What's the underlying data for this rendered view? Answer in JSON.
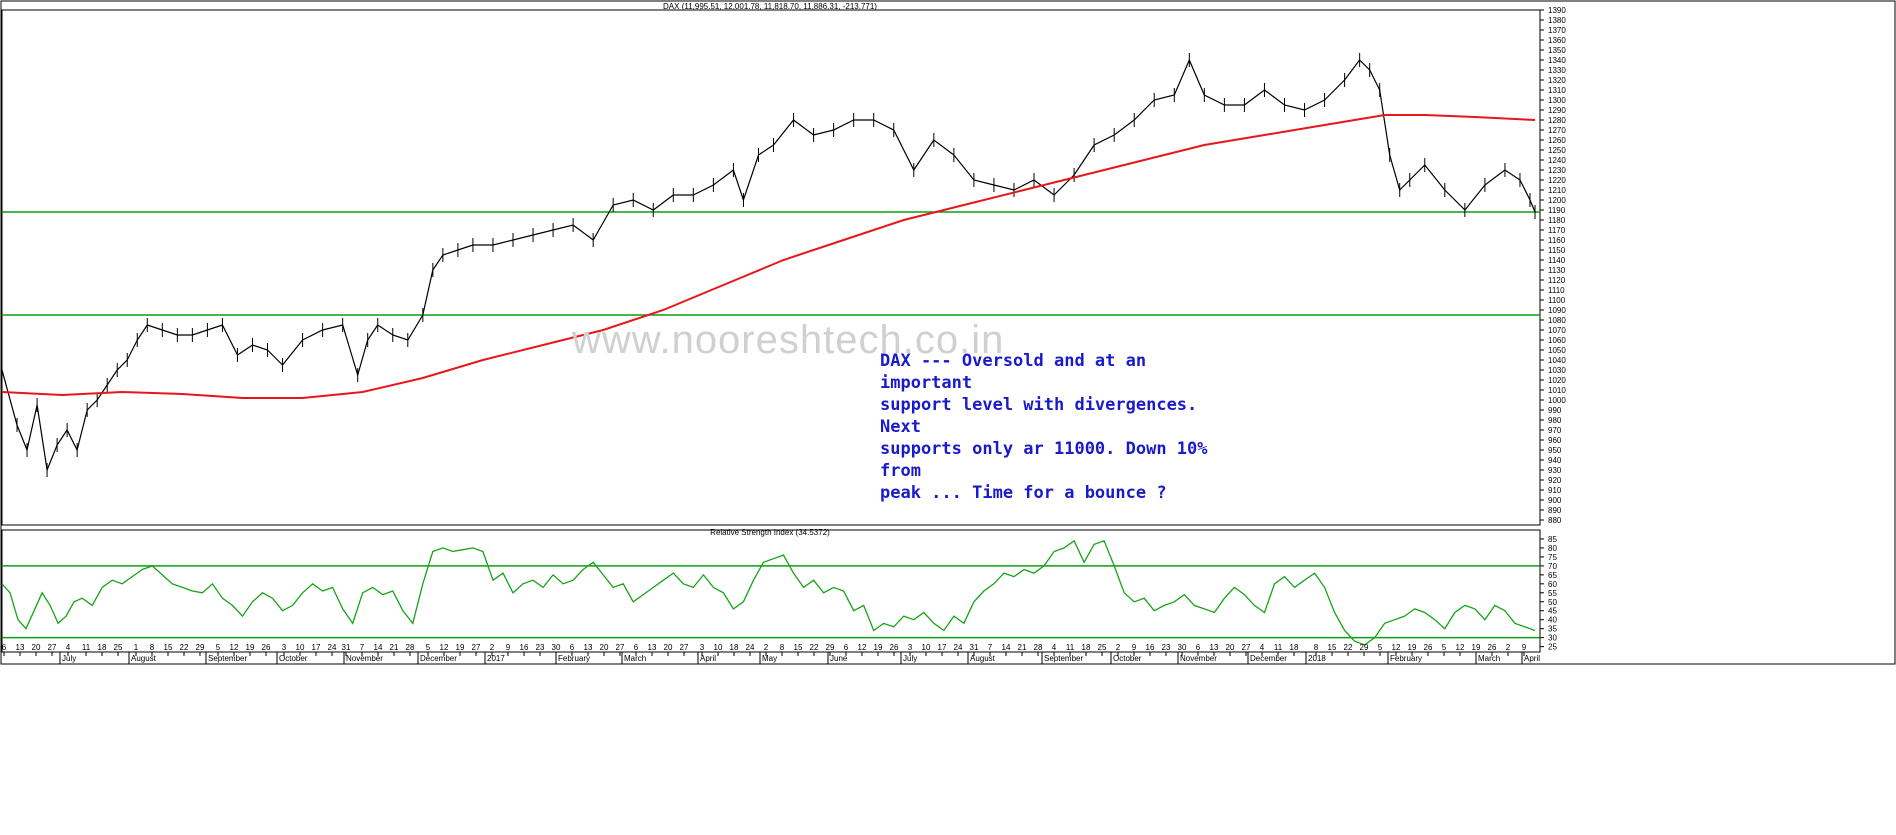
{
  "header": {
    "title": "DAX (11,995.51, 12,001.78, 11,818.70, 11,886.31, -213.771)"
  },
  "watermark": "www.nooreshtech.co.in",
  "annotation": [
    "DAX --- Oversold and at an important",
    "support level with divergences. Next",
    "supports only ar 11000. Down 10% from",
    "peak ... Time for a bounce ?"
  ],
  "colors": {
    "price": "#000000",
    "ma": "#e8161b",
    "support": "#0b9e10",
    "rsi": "#17a317",
    "annotation": "#1a1acd"
  },
  "chart_data": [
    {
      "type": "line",
      "title": "DAX (11,995.51, 12,001.78, 11,818.70, 11,886.31, -213.771)",
      "ylim": [
        8750,
        13900
      ],
      "y_ticks": [
        8800,
        8900,
        9000,
        9100,
        9200,
        9300,
        9400,
        9500,
        9600,
        9700,
        9800,
        9900,
        10000,
        10100,
        10200,
        10300,
        10400,
        10500,
        10600,
        10700,
        10800,
        10900,
        11000,
        11100,
        11200,
        11300,
        11400,
        11500,
        11600,
        11700,
        11800,
        11900,
        12000,
        12100,
        12200,
        12300,
        12400,
        12500,
        12600,
        12700,
        12800,
        12900,
        13000,
        13100,
        13200,
        13300,
        13400,
        13500,
        13600,
        13700,
        13800,
        13900
      ],
      "y_tick_labels": [
        "880",
        "890",
        "900",
        "910",
        "920",
        "930",
        "940",
        "950",
        "960",
        "970",
        "980",
        "990",
        "1000",
        "1010",
        "1020",
        "1030",
        "1040",
        "1050",
        "1060",
        "1070",
        "1080",
        "1090",
        "1100",
        "1110",
        "1120",
        "1130",
        "1140",
        "1150",
        "1160",
        "1170",
        "1180",
        "1190",
        "1200",
        "1210",
        "1220",
        "1230",
        "1240",
        "1250",
        "1260",
        "1270",
        "1280",
        "1290",
        "1300",
        "1310",
        "1320",
        "1330",
        "1340",
        "1350",
        "1360",
        "1370",
        "1380",
        "1390"
      ],
      "support_levels": [
        11880,
        10850
      ],
      "x_range": [
        0,
        1535
      ],
      "series": [
        {
          "name": "",
          "kind": "price",
          "x": [
            0,
            15,
            25,
            35,
            45,
            55,
            65,
            75,
            85,
            95,
            105,
            115,
            125,
            135,
            145,
            160,
            175,
            190,
            205,
            220,
            235,
            250,
            265,
            280,
            300,
            320,
            340,
            355,
            365,
            375,
            390,
            405,
            420,
            430,
            440,
            455,
            470,
            490,
            510,
            530,
            550,
            570,
            590,
            610,
            630,
            650,
            670,
            690,
            710,
            730,
            740,
            755,
            770,
            790,
            810,
            830,
            850,
            870,
            890,
            910,
            930,
            950,
            970,
            990,
            1010,
            1030,
            1050,
            1070,
            1090,
            1110,
            1130,
            1150,
            1170,
            1185,
            1200,
            1220,
            1240,
            1260,
            1280,
            1300,
            1320,
            1340,
            1355,
            1365,
            1375,
            1385,
            1395,
            1405,
            1420,
            1440,
            1460,
            1480,
            1500,
            1515,
            1525,
            1530
          ],
          "y": [
            10300,
            9750,
            9500,
            9950,
            9300,
            9550,
            9700,
            9500,
            9900,
            10000,
            10150,
            10300,
            10400,
            10600,
            10750,
            10700,
            10650,
            10650,
            10700,
            10750,
            10450,
            10550,
            10500,
            10350,
            10600,
            10700,
            10750,
            10250,
            10600,
            10750,
            10650,
            10600,
            10850,
            11300,
            11450,
            11500,
            11550,
            11550,
            11600,
            11650,
            11700,
            11750,
            11600,
            11950,
            12000,
            11900,
            12050,
            12050,
            12150,
            12300,
            12000,
            12450,
            12550,
            12800,
            12650,
            12700,
            12800,
            12800,
            12700,
            12300,
            12600,
            12450,
            12200,
            12150,
            12100,
            12200,
            12050,
            12250,
            12550,
            12650,
            12800,
            13000,
            13050,
            13400,
            13050,
            12950,
            12950,
            13100,
            12950,
            12900,
            13000,
            13200,
            13400,
            13300,
            13100,
            12450,
            12100,
            12200,
            12350,
            12100,
            11900,
            12150,
            12300,
            12200,
            12000,
            11880
          ]
        },
        {
          "name": "",
          "kind": "moving_average",
          "x": [
            0,
            60,
            120,
            180,
            240,
            300,
            360,
            420,
            480,
            540,
            600,
            660,
            720,
            780,
            840,
            900,
            960,
            1020,
            1080,
            1140,
            1200,
            1260,
            1320,
            1380,
            1420,
            1470,
            1530
          ],
          "y": [
            10080,
            10050,
            10080,
            10060,
            10020,
            10020,
            10080,
            10220,
            10400,
            10550,
            10700,
            10900,
            11150,
            11400,
            11600,
            11800,
            11950,
            12100,
            12250,
            12400,
            12550,
            12650,
            12750,
            12850,
            12850,
            12830,
            12800
          ]
        }
      ]
    },
    {
      "type": "line",
      "title": "Relative Strength Index (34.5372)",
      "ylim": [
        22,
        90
      ],
      "y_ticks": [
        25,
        30,
        35,
        40,
        45,
        50,
        55,
        60,
        65,
        70,
        75,
        80,
        85
      ],
      "y_tick_labels": [
        "25",
        "30",
        "35",
        "40",
        "45",
        "50",
        "55",
        "60",
        "65",
        "70",
        "75",
        "80",
        "85"
      ],
      "levels": [
        70,
        30
      ],
      "x_range": [
        0,
        1535
      ],
      "series": [
        {
          "name": "",
          "kind": "rsi",
          "x": [
            0,
            8,
            16,
            24,
            32,
            40,
            48,
            56,
            64,
            72,
            80,
            90,
            100,
            110,
            120,
            130,
            140,
            150,
            160,
            170,
            180,
            190,
            200,
            210,
            220,
            230,
            240,
            250,
            260,
            270,
            280,
            290,
            300,
            310,
            320,
            330,
            340,
            350,
            360,
            370,
            380,
            390,
            400,
            410,
            420,
            430,
            440,
            450,
            460,
            470,
            480,
            490,
            500,
            510,
            520,
            530,
            540,
            550,
            560,
            570,
            580,
            590,
            600,
            610,
            620,
            630,
            640,
            650,
            660,
            670,
            680,
            690,
            700,
            710,
            720,
            730,
            740,
            750,
            760,
            770,
            780,
            790,
            800,
            810,
            820,
            830,
            840,
            850,
            860,
            870,
            880,
            890,
            900,
            910,
            920,
            930,
            940,
            950,
            960,
            970,
            980,
            990,
            1000,
            1010,
            1020,
            1030,
            1040,
            1050,
            1060,
            1070,
            1080,
            1090,
            1100,
            1110,
            1120,
            1130,
            1140,
            1150,
            1160,
            1170,
            1180,
            1190,
            1200,
            1210,
            1220,
            1230,
            1240,
            1250,
            1260,
            1270,
            1280,
            1290,
            1300,
            1310,
            1320,
            1330,
            1340,
            1350,
            1360,
            1370,
            1380,
            1390,
            1400,
            1410,
            1420,
            1430,
            1440,
            1450,
            1460,
            1470,
            1480,
            1490,
            1500,
            1510,
            1520,
            1530
          ],
          "y": [
            60,
            55,
            40,
            35,
            45,
            55,
            48,
            38,
            42,
            50,
            52,
            48,
            58,
            62,
            60,
            64,
            68,
            70,
            65,
            60,
            58,
            56,
            55,
            60,
            52,
            48,
            42,
            50,
            55,
            52,
            45,
            48,
            55,
            60,
            56,
            58,
            46,
            38,
            55,
            58,
            54,
            56,
            45,
            38,
            60,
            78,
            80,
            78,
            79,
            80,
            78,
            62,
            66,
            55,
            60,
            62,
            58,
            65,
            60,
            62,
            68,
            72,
            65,
            58,
            60,
            50,
            54,
            58,
            62,
            66,
            60,
            58,
            65,
            58,
            55,
            46,
            50,
            62,
            72,
            74,
            76,
            66,
            58,
            62,
            55,
            58,
            56,
            45,
            48,
            34,
            38,
            36,
            42,
            40,
            44,
            38,
            34,
            42,
            38,
            50,
            56,
            60,
            66,
            64,
            68,
            66,
            70,
            78,
            80,
            84,
            72,
            82,
            84,
            70,
            55,
            50,
            52,
            45,
            48,
            50,
            54,
            48,
            46,
            44,
            52,
            58,
            54,
            48,
            44,
            60,
            64,
            58,
            62,
            66,
            58,
            44,
            34,
            28,
            26,
            30,
            38,
            40,
            42,
            46,
            44,
            40,
            35,
            44,
            48,
            46,
            40,
            48,
            45,
            38,
            36,
            34
          ]
        }
      ]
    }
  ],
  "x_axis": {
    "ticks": [
      {
        "x": 4,
        "label": "6"
      },
      {
        "x": 20,
        "label": "13"
      },
      {
        "x": 36,
        "label": "20"
      },
      {
        "x": 52,
        "label": "27"
      },
      {
        "x": 68,
        "label": "4"
      },
      {
        "x": 86,
        "label": "11"
      },
      {
        "x": 102,
        "label": "18"
      },
      {
        "x": 118,
        "label": "25"
      },
      {
        "x": 136,
        "label": "1"
      },
      {
        "x": 152,
        "label": "8"
      },
      {
        "x": 168,
        "label": "15"
      },
      {
        "x": 184,
        "label": "22"
      },
      {
        "x": 200,
        "label": "29"
      },
      {
        "x": 218,
        "label": "5"
      },
      {
        "x": 234,
        "label": "12"
      },
      {
        "x": 250,
        "label": "19"
      },
      {
        "x": 266,
        "label": "26"
      },
      {
        "x": 284,
        "label": "3"
      },
      {
        "x": 300,
        "label": "10"
      },
      {
        "x": 316,
        "label": "17"
      },
      {
        "x": 332,
        "label": "24"
      },
      {
        "x": 346,
        "label": "31"
      },
      {
        "x": 362,
        "label": "7"
      },
      {
        "x": 378,
        "label": "14"
      },
      {
        "x": 394,
        "label": "21"
      },
      {
        "x": 410,
        "label": "28"
      },
      {
        "x": 428,
        "label": "5"
      },
      {
        "x": 444,
        "label": "12"
      },
      {
        "x": 460,
        "label": "19"
      },
      {
        "x": 476,
        "label": "27"
      },
      {
        "x": 492,
        "label": "2"
      },
      {
        "x": 508,
        "label": "9"
      },
      {
        "x": 524,
        "label": "16"
      },
      {
        "x": 540,
        "label": "23"
      },
      {
        "x": 556,
        "label": "30"
      },
      {
        "x": 572,
        "label": "6"
      },
      {
        "x": 588,
        "label": "13"
      },
      {
        "x": 604,
        "label": "20"
      },
      {
        "x": 620,
        "label": "27"
      },
      {
        "x": 636,
        "label": "6"
      },
      {
        "x": 652,
        "label": "13"
      },
      {
        "x": 668,
        "label": "20"
      },
      {
        "x": 684,
        "label": "27"
      },
      {
        "x": 702,
        "label": "3"
      },
      {
        "x": 718,
        "label": "10"
      },
      {
        "x": 734,
        "label": "18"
      },
      {
        "x": 750,
        "label": "24"
      },
      {
        "x": 766,
        "label": "2"
      },
      {
        "x": 782,
        "label": "8"
      },
      {
        "x": 798,
        "label": "15"
      },
      {
        "x": 814,
        "label": "22"
      },
      {
        "x": 830,
        "label": "29"
      },
      {
        "x": 846,
        "label": "6"
      },
      {
        "x": 862,
        "label": "12"
      },
      {
        "x": 878,
        "label": "19"
      },
      {
        "x": 894,
        "label": "26"
      },
      {
        "x": 910,
        "label": "3"
      },
      {
        "x": 926,
        "label": "10"
      },
      {
        "x": 942,
        "label": "17"
      },
      {
        "x": 958,
        "label": "24"
      },
      {
        "x": 974,
        "label": "31"
      },
      {
        "x": 990,
        "label": "7"
      },
      {
        "x": 1006,
        "label": "14"
      },
      {
        "x": 1022,
        "label": "21"
      },
      {
        "x": 1038,
        "label": "28"
      },
      {
        "x": 1054,
        "label": "4"
      },
      {
        "x": 1070,
        "label": "11"
      },
      {
        "x": 1086,
        "label": "18"
      },
      {
        "x": 1102,
        "label": "25"
      },
      {
        "x": 1118,
        "label": "2"
      },
      {
        "x": 1134,
        "label": "9"
      },
      {
        "x": 1150,
        "label": "16"
      },
      {
        "x": 1166,
        "label": "23"
      },
      {
        "x": 1182,
        "label": "30"
      },
      {
        "x": 1198,
        "label": "6"
      },
      {
        "x": 1214,
        "label": "13"
      },
      {
        "x": 1230,
        "label": "20"
      },
      {
        "x": 1246,
        "label": "27"
      },
      {
        "x": 1262,
        "label": "4"
      },
      {
        "x": 1278,
        "label": "11"
      },
      {
        "x": 1294,
        "label": "18"
      },
      {
        "x": 1316,
        "label": "8"
      },
      {
        "x": 1332,
        "label": "15"
      },
      {
        "x": 1348,
        "label": "22"
      },
      {
        "x": 1364,
        "label": "29"
      },
      {
        "x": 1380,
        "label": "5"
      },
      {
        "x": 1396,
        "label": "12"
      },
      {
        "x": 1412,
        "label": "19"
      },
      {
        "x": 1428,
        "label": "26"
      },
      {
        "x": 1444,
        "label": "5"
      },
      {
        "x": 1460,
        "label": "12"
      },
      {
        "x": 1476,
        "label": "19"
      },
      {
        "x": 1492,
        "label": "26"
      },
      {
        "x": 1508,
        "label": "2"
      },
      {
        "x": 1524,
        "label": "9"
      }
    ],
    "months": [
      {
        "x": 62,
        "label": "July"
      },
      {
        "x": 131,
        "label": "August"
      },
      {
        "x": 208,
        "label": "September"
      },
      {
        "x": 279,
        "label": "October"
      },
      {
        "x": 346,
        "label": "November"
      },
      {
        "x": 420,
        "label": "December"
      },
      {
        "x": 487,
        "label": "2017"
      },
      {
        "x": 558,
        "label": "February"
      },
      {
        "x": 624,
        "label": "March"
      },
      {
        "x": 700,
        "label": "April"
      },
      {
        "x": 762,
        "label": "May"
      },
      {
        "x": 830,
        "label": "June"
      },
      {
        "x": 903,
        "label": "July"
      },
      {
        "x": 970,
        "label": "August"
      },
      {
        "x": 1044,
        "label": "September"
      },
      {
        "x": 1113,
        "label": "October"
      },
      {
        "x": 1180,
        "label": "November"
      },
      {
        "x": 1250,
        "label": "December"
      },
      {
        "x": 1308,
        "label": "2018"
      },
      {
        "x": 1390,
        "label": "February"
      },
      {
        "x": 1478,
        "label": "March"
      },
      {
        "x": 1524,
        "label": "April"
      }
    ]
  }
}
